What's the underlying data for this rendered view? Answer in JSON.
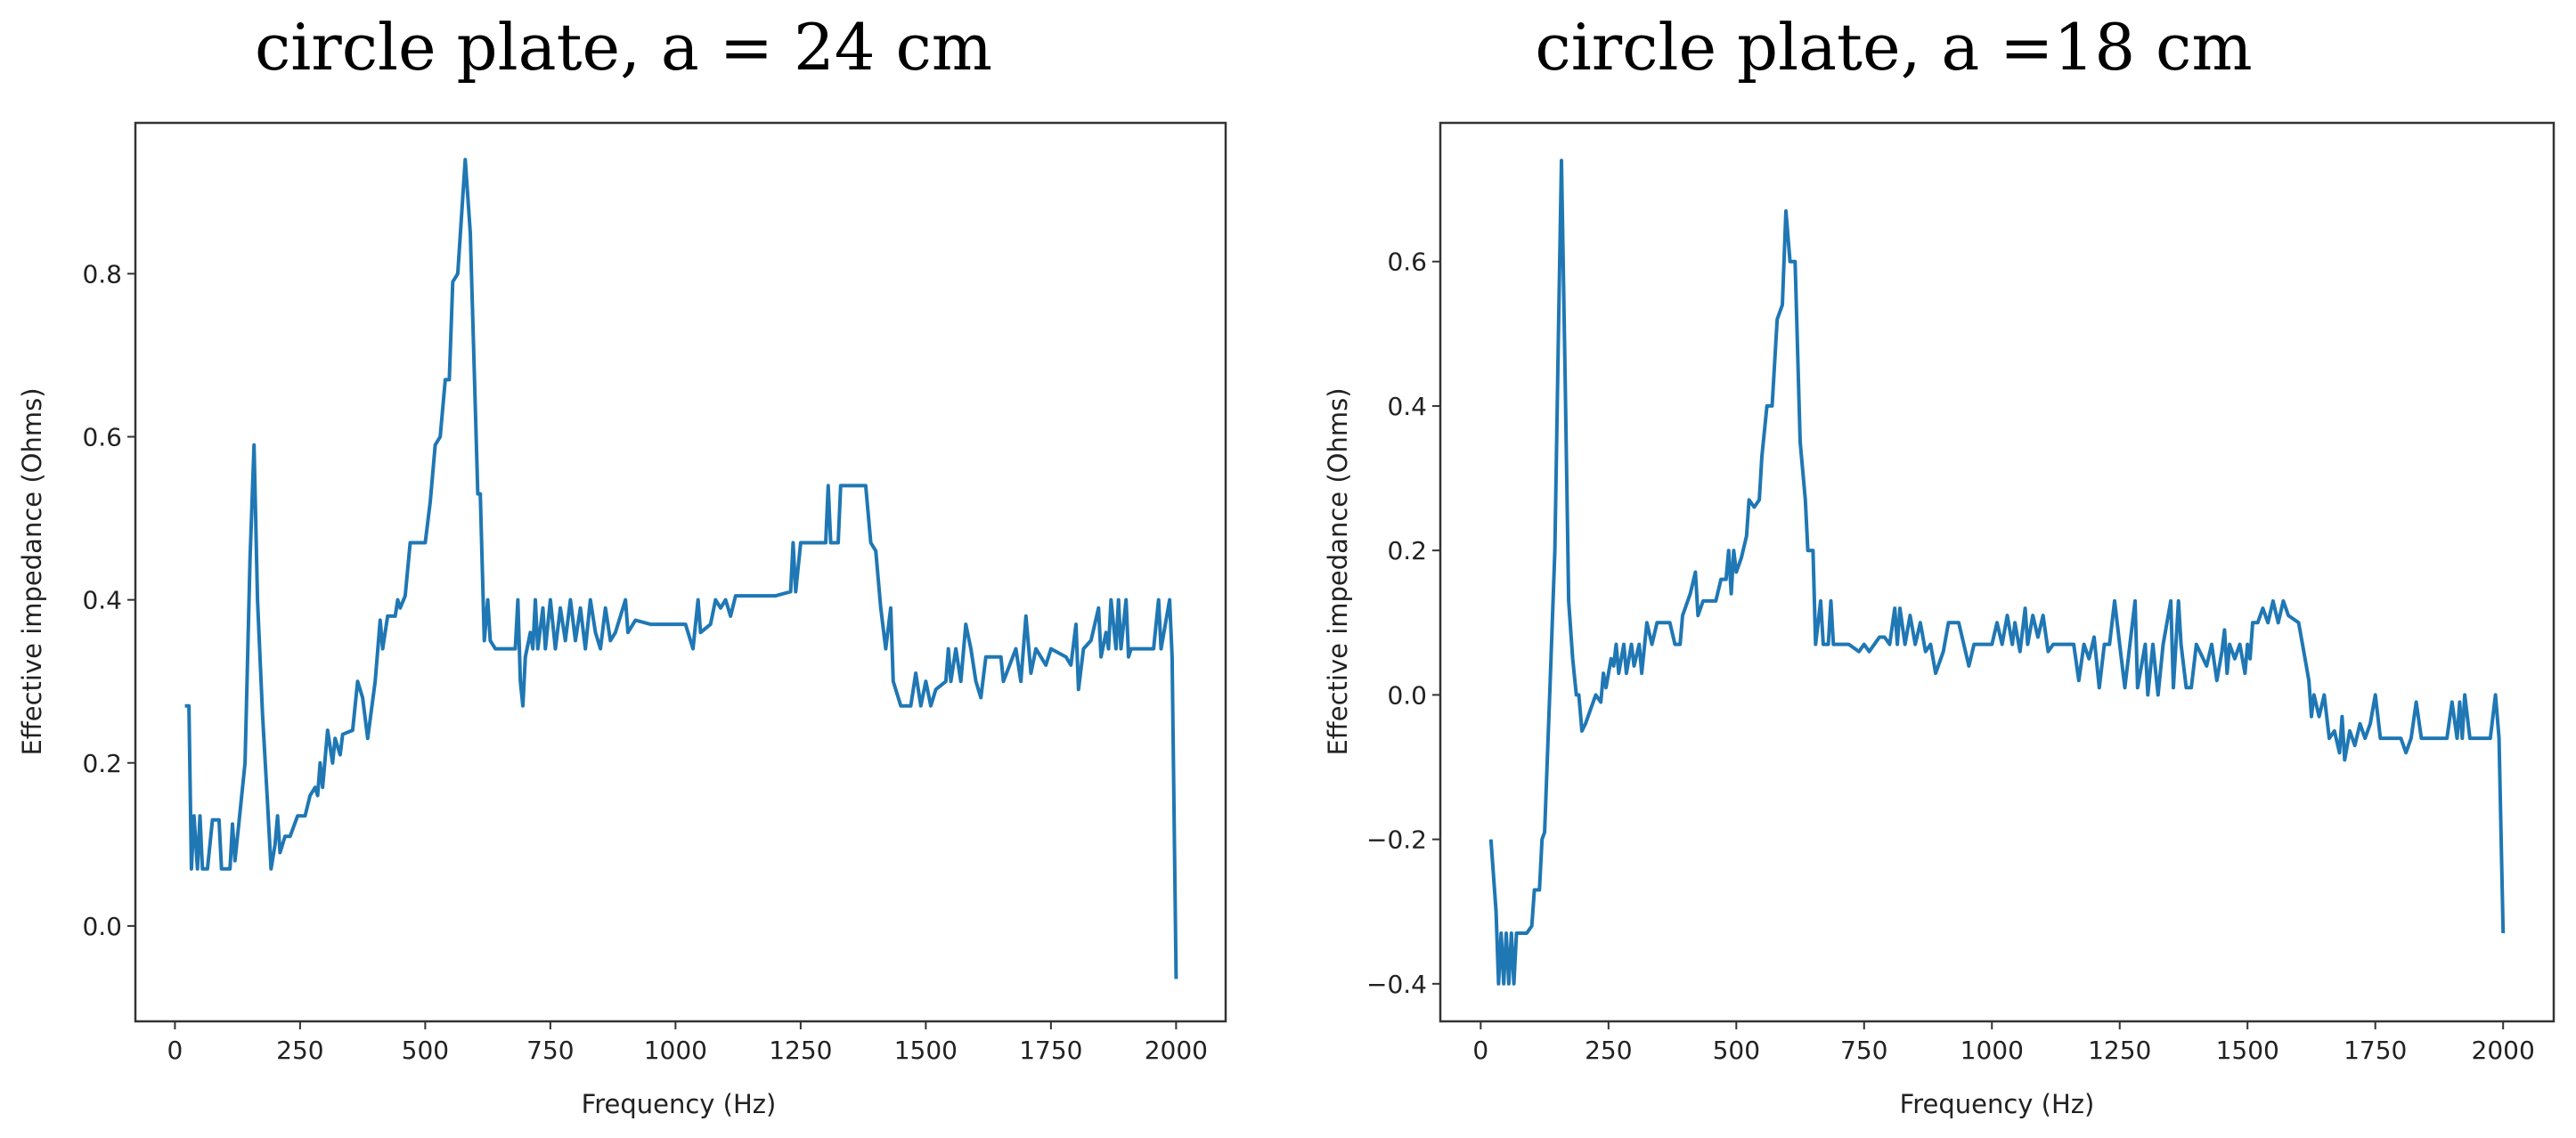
{
  "chart_data": [
    {
      "type": "line",
      "title": "circle plate, a = 24 cm",
      "xlabel": "Frequency (Hz)",
      "ylabel": "Effective impedance (Ohms)",
      "xlim": [
        -79,
        2099
      ],
      "ylim": [
        -0.117,
        0.985
      ],
      "xticks": [
        0,
        250,
        500,
        750,
        1000,
        1250,
        1500,
        1750,
        2000
      ],
      "yticks": [
        0.0,
        0.2,
        0.4,
        0.6,
        0.8
      ],
      "ytick_labels": [
        "0.0",
        "0.2",
        "0.4",
        "0.6",
        "0.8"
      ],
      "grid": false,
      "color": "#1f77b4",
      "x": [
        20,
        28,
        33,
        38,
        45,
        50,
        55,
        65,
        75,
        88,
        93,
        110,
        115,
        120,
        130,
        140,
        150,
        158,
        165,
        175,
        185,
        192,
        200,
        205,
        210,
        220,
        230,
        245,
        260,
        270,
        280,
        285,
        290,
        295,
        305,
        315,
        320,
        330,
        335,
        355,
        365,
        375,
        385,
        400,
        410,
        415,
        425,
        440,
        445,
        450,
        460,
        470,
        500,
        510,
        520,
        530,
        540,
        548,
        555,
        565,
        580,
        590,
        605,
        610,
        618,
        625,
        630,
        640,
        680,
        685,
        690,
        695,
        700,
        710,
        715,
        720,
        725,
        735,
        740,
        750,
        760,
        770,
        780,
        790,
        800,
        810,
        820,
        830,
        840,
        850,
        860,
        870,
        880,
        900,
        905,
        920,
        950,
        1000,
        1020,
        1035,
        1045,
        1050,
        1070,
        1080,
        1090,
        1100,
        1110,
        1120,
        1200,
        1230,
        1235,
        1240,
        1250,
        1300,
        1305,
        1310,
        1325,
        1330,
        1380,
        1390,
        1400,
        1410,
        1420,
        1430,
        1435,
        1450,
        1470,
        1480,
        1490,
        1500,
        1510,
        1520,
        1540,
        1545,
        1550,
        1560,
        1570,
        1580,
        1590,
        1600,
        1610,
        1620,
        1650,
        1655,
        1680,
        1690,
        1700,
        1710,
        1720,
        1740,
        1750,
        1780,
        1790,
        1800,
        1805,
        1815,
        1830,
        1845,
        1850,
        1860,
        1865,
        1870,
        1880,
        1885,
        1890,
        1900,
        1905,
        1910,
        1955,
        1965,
        1970,
        1987,
        1992,
        2000
      ],
      "y": [
        0.27,
        0.27,
        0.07,
        0.135,
        0.07,
        0.135,
        0.07,
        0.07,
        0.13,
        0.13,
        0.07,
        0.07,
        0.125,
        0.08,
        0.14,
        0.2,
        0.45,
        0.59,
        0.4,
        0.26,
        0.15,
        0.07,
        0.1,
        0.135,
        0.09,
        0.11,
        0.11,
        0.135,
        0.135,
        0.16,
        0.17,
        0.16,
        0.2,
        0.17,
        0.24,
        0.2,
        0.23,
        0.21,
        0.235,
        0.24,
        0.3,
        0.28,
        0.23,
        0.3,
        0.375,
        0.34,
        0.38,
        0.38,
        0.4,
        0.39,
        0.405,
        0.47,
        0.47,
        0.52,
        0.59,
        0.6,
        0.67,
        0.67,
        0.79,
        0.8,
        0.94,
        0.85,
        0.53,
        0.53,
        0.35,
        0.4,
        0.35,
        0.34,
        0.34,
        0.4,
        0.3,
        0.27,
        0.33,
        0.36,
        0.34,
        0.4,
        0.34,
        0.39,
        0.34,
        0.4,
        0.34,
        0.39,
        0.35,
        0.4,
        0.35,
        0.39,
        0.34,
        0.4,
        0.36,
        0.34,
        0.39,
        0.35,
        0.36,
        0.4,
        0.36,
        0.375,
        0.37,
        0.37,
        0.37,
        0.34,
        0.4,
        0.36,
        0.37,
        0.4,
        0.39,
        0.4,
        0.38,
        0.405,
        0.405,
        0.41,
        0.47,
        0.41,
        0.47,
        0.47,
        0.54,
        0.47,
        0.47,
        0.54,
        0.54,
        0.47,
        0.46,
        0.39,
        0.34,
        0.39,
        0.3,
        0.27,
        0.27,
        0.31,
        0.27,
        0.3,
        0.27,
        0.29,
        0.3,
        0.34,
        0.3,
        0.34,
        0.3,
        0.37,
        0.34,
        0.3,
        0.28,
        0.33,
        0.33,
        0.3,
        0.34,
        0.3,
        0.38,
        0.31,
        0.34,
        0.32,
        0.34,
        0.33,
        0.32,
        0.37,
        0.29,
        0.34,
        0.35,
        0.39,
        0.33,
        0.36,
        0.34,
        0.4,
        0.34,
        0.4,
        0.34,
        0.4,
        0.33,
        0.34,
        0.34,
        0.4,
        0.34,
        0.4,
        0.33,
        -0.065
      ]
    },
    {
      "type": "line",
      "title": "circle plate, a =18 cm",
      "xlabel": "Frequency (Hz)",
      "ylabel": "Effective impedance (Ohms)",
      "xlim": [
        -79,
        2099
      ],
      "ylim": [
        -0.452,
        0.792
      ],
      "xticks": [
        0,
        250,
        500,
        750,
        1000,
        1250,
        1500,
        1750,
        2000
      ],
      "yticks": [
        -0.4,
        -0.2,
        0.0,
        0.2,
        0.4,
        0.6
      ],
      "ytick_labels": [
        "−0.4",
        "−0.2",
        "0.0",
        "0.2",
        "0.4",
        "0.6"
      ],
      "grid": false,
      "color": "#1f77b4",
      "x": [
        20,
        30,
        35,
        40,
        45,
        50,
        55,
        60,
        65,
        70,
        90,
        100,
        105,
        115,
        120,
        125,
        135,
        145,
        152,
        158,
        165,
        172,
        180,
        187,
        192,
        198,
        205,
        215,
        225,
        235,
        240,
        245,
        255,
        260,
        265,
        270,
        280,
        285,
        295,
        300,
        310,
        315,
        325,
        335,
        345,
        370,
        380,
        390,
        395,
        400,
        410,
        420,
        425,
        435,
        460,
        470,
        480,
        485,
        490,
        495,
        500,
        510,
        520,
        525,
        535,
        545,
        550,
        560,
        570,
        580,
        590,
        597,
        605,
        615,
        625,
        635,
        640,
        650,
        655,
        665,
        670,
        680,
        685,
        690,
        720,
        740,
        750,
        760,
        770,
        780,
        790,
        800,
        810,
        815,
        820,
        830,
        840,
        850,
        860,
        870,
        880,
        890,
        905,
        915,
        935,
        945,
        955,
        965,
        1000,
        1010,
        1020,
        1030,
        1040,
        1045,
        1055,
        1065,
        1070,
        1080,
        1090,
        1100,
        1110,
        1120,
        1160,
        1170,
        1180,
        1190,
        1200,
        1210,
        1220,
        1230,
        1240,
        1250,
        1260,
        1270,
        1280,
        1285,
        1300,
        1305,
        1315,
        1325,
        1335,
        1350,
        1355,
        1365,
        1370,
        1380,
        1390,
        1400,
        1420,
        1430,
        1440,
        1450,
        1455,
        1460,
        1465,
        1475,
        1485,
        1495,
        1500,
        1505,
        1510,
        1520,
        1530,
        1540,
        1550,
        1560,
        1570,
        1580,
        1600,
        1610,
        1620,
        1625,
        1630,
        1640,
        1650,
        1660,
        1670,
        1680,
        1685,
        1690,
        1700,
        1710,
        1720,
        1730,
        1740,
        1750,
        1760,
        1800,
        1810,
        1820,
        1830,
        1840,
        1890,
        1900,
        1910,
        1915,
        1920,
        1925,
        1935,
        1975,
        1985,
        1992,
        2000
      ],
      "y": [
        -0.2,
        -0.3,
        -0.4,
        -0.33,
        -0.4,
        -0.33,
        -0.4,
        -0.33,
        -0.4,
        -0.33,
        -0.33,
        -0.32,
        -0.27,
        -0.27,
        -0.2,
        -0.19,
        0,
        0.2,
        0.5,
        0.74,
        0.45,
        0.13,
        0.05,
        0,
        0,
        -0.05,
        -0.04,
        -0.02,
        0,
        -0.01,
        0.03,
        0.01,
        0.05,
        0.04,
        0.07,
        0.03,
        0.07,
        0.03,
        0.07,
        0.04,
        0.07,
        0.03,
        0.1,
        0.07,
        0.1,
        0.1,
        0.07,
        0.07,
        0.11,
        0.12,
        0.14,
        0.17,
        0.11,
        0.13,
        0.13,
        0.16,
        0.16,
        0.2,
        0.14,
        0.2,
        0.17,
        0.19,
        0.22,
        0.27,
        0.26,
        0.27,
        0.33,
        0.4,
        0.4,
        0.52,
        0.54,
        0.67,
        0.6,
        0.6,
        0.35,
        0.27,
        0.2,
        0.2,
        0.07,
        0.13,
        0.07,
        0.07,
        0.13,
        0.07,
        0.07,
        0.06,
        0.07,
        0.06,
        0.07,
        0.08,
        0.08,
        0.07,
        0.12,
        0.07,
        0.12,
        0.07,
        0.11,
        0.07,
        0.1,
        0.06,
        0.07,
        0.03,
        0.06,
        0.1,
        0.1,
        0.07,
        0.04,
        0.07,
        0.07,
        0.1,
        0.07,
        0.11,
        0.07,
        0.1,
        0.06,
        0.12,
        0.07,
        0.11,
        0.08,
        0.11,
        0.06,
        0.07,
        0.07,
        0.02,
        0.07,
        0.05,
        0.08,
        0.01,
        0.07,
        0.07,
        0.13,
        0.07,
        0.01,
        0.07,
        0.13,
        0.01,
        0.07,
        0.0,
        0.07,
        0.0,
        0.07,
        0.13,
        0.01,
        0.13,
        0.07,
        0.01,
        0.01,
        0.07,
        0.04,
        0.07,
        0.02,
        0.06,
        0.09,
        0.03,
        0.07,
        0.05,
        0.07,
        0.03,
        0.07,
        0.05,
        0.1,
        0.1,
        0.12,
        0.1,
        0.13,
        0.1,
        0.13,
        0.11,
        0.1,
        0.06,
        0.02,
        -0.03,
        0.0,
        -0.03,
        0.0,
        -0.06,
        -0.05,
        -0.08,
        -0.03,
        -0.09,
        -0.05,
        -0.07,
        -0.04,
        -0.06,
        -0.04,
        0.0,
        -0.06,
        -0.06,
        -0.08,
        -0.06,
        -0.01,
        -0.06,
        -0.06,
        -0.01,
        -0.06,
        -0.01,
        -0.06,
        0.0,
        -0.06,
        -0.06,
        0.0,
        -0.06,
        -0.33
      ]
    }
  ]
}
